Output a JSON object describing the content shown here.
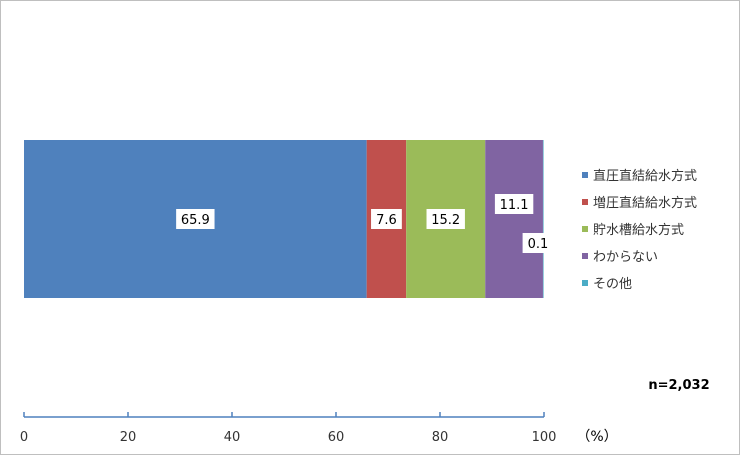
{
  "chart_data": {
    "type": "bar",
    "orientation": "horizontal",
    "stacked": true,
    "categories": [
      ""
    ],
    "series": [
      {
        "name": "直圧直結給水方式",
        "values": [
          65.9
        ],
        "label": "65.9",
        "color": "#4f81bd"
      },
      {
        "name": "増圧直結給水方式",
        "values": [
          7.6
        ],
        "label": "7.6",
        "color": "#c0504d"
      },
      {
        "name": "貯水槽給水方式",
        "values": [
          15.2
        ],
        "label": "15.2",
        "color": "#9bbb59"
      },
      {
        "name": "わからない",
        "values": [
          11.1
        ],
        "label": "11.1",
        "color": "#8064a2"
      },
      {
        "name": "その他",
        "values": [
          0.1
        ],
        "label": "0.1",
        "color": "#4bacc6"
      }
    ],
    "xlim": [
      0,
      100
    ],
    "xticks": [
      "0",
      "20",
      "40",
      "60",
      "80",
      "100"
    ],
    "unit_label": "（%）",
    "n_label": "n=2,032",
    "legend_position": "right",
    "grid": false,
    "axis_color": "#4f81bd"
  }
}
